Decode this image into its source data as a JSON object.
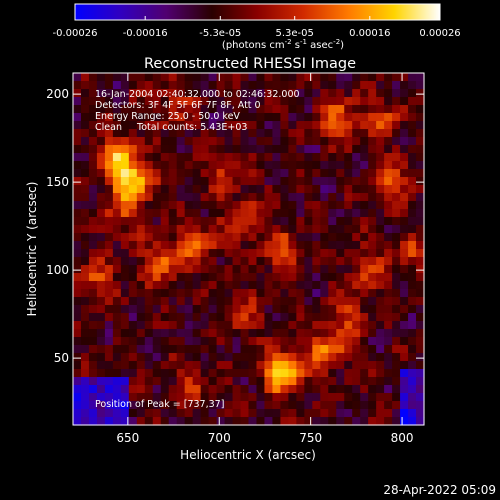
{
  "colorbar": {
    "ticks": [
      "-0.00026",
      "-0.00016",
      "-5.3e-05",
      "5.3e-05",
      "0.00016",
      "0.00026"
    ],
    "units_text": "(photons cm",
    "units_sup1": "-2",
    "units_mid": " s",
    "units_sup2": "-1",
    "units_mid2": " asec",
    "units_sup3": "-2",
    "units_end": ")",
    "scale_colors": [
      "#0000ff",
      "#3000c0",
      "#500070",
      "#2a0000",
      "#8a0000",
      "#d12a00",
      "#ff7a00",
      "#ffd400",
      "#ffffff"
    ]
  },
  "chart_data": {
    "type": "heatmap",
    "title": "Reconstructed RHESSI Image",
    "xlabel": "Heliocentric X (arcsec)",
    "ylabel": "Heliocentric Y (arcsec)",
    "xlim": [
      620,
      812
    ],
    "ylim": [
      12,
      212
    ],
    "x_ticks": [
      650,
      700,
      750,
      800
    ],
    "y_ticks": [
      50,
      100,
      150,
      200
    ],
    "colorbar_range": [
      -0.00026,
      0.00026
    ],
    "peak": [
      737,
      37
    ],
    "hotspots": [
      {
        "x": 652,
        "y": 150,
        "value": 0.00026
      },
      {
        "x": 644,
        "y": 165,
        "value": 0.00018
      },
      {
        "x": 735,
        "y": 42,
        "value": 0.00026
      },
      {
        "x": 760,
        "y": 55,
        "value": 0.00018
      },
      {
        "x": 688,
        "y": 115,
        "value": 0.00016
      },
      {
        "x": 668,
        "y": 105,
        "value": 0.00015
      },
      {
        "x": 715,
        "y": 128,
        "value": 0.00014
      },
      {
        "x": 765,
        "y": 185,
        "value": 0.00017
      },
      {
        "x": 790,
        "y": 185,
        "value": 0.00012
      },
      {
        "x": 795,
        "y": 150,
        "value": 0.00013
      },
      {
        "x": 803,
        "y": 110,
        "value": 0.0001
      },
      {
        "x": 735,
        "y": 110,
        "value": 0.00013
      },
      {
        "x": 780,
        "y": 100,
        "value": 0.00011
      },
      {
        "x": 705,
        "y": 155,
        "value": 0.0001
      },
      {
        "x": 712,
        "y": 75,
        "value": 0.0001
      },
      {
        "x": 685,
        "y": 35,
        "value": 9e-05
      },
      {
        "x": 632,
        "y": 95,
        "value": 0.00012
      },
      {
        "x": 645,
        "y": 130,
        "value": 0.0001
      },
      {
        "x": 770,
        "y": 75,
        "value": 0.0001
      },
      {
        "x": 675,
        "y": 195,
        "value": 9e-05
      }
    ]
  },
  "annotations": {
    "line1": "16-Jan-2004 02:40:32.000 to 02:46:32.000",
    "line2": "Detectors: 3F 4F 5F 6F 7F 8F, Att 0",
    "line3": "Energy Range: 25.0 - 50.0 keV",
    "line4": "Clean     Total counts: 5.43E+03",
    "peak_label": "Position of Peak = [737,37]"
  },
  "footer": {
    "timestamp": "28-Apr-2022 05:09"
  }
}
